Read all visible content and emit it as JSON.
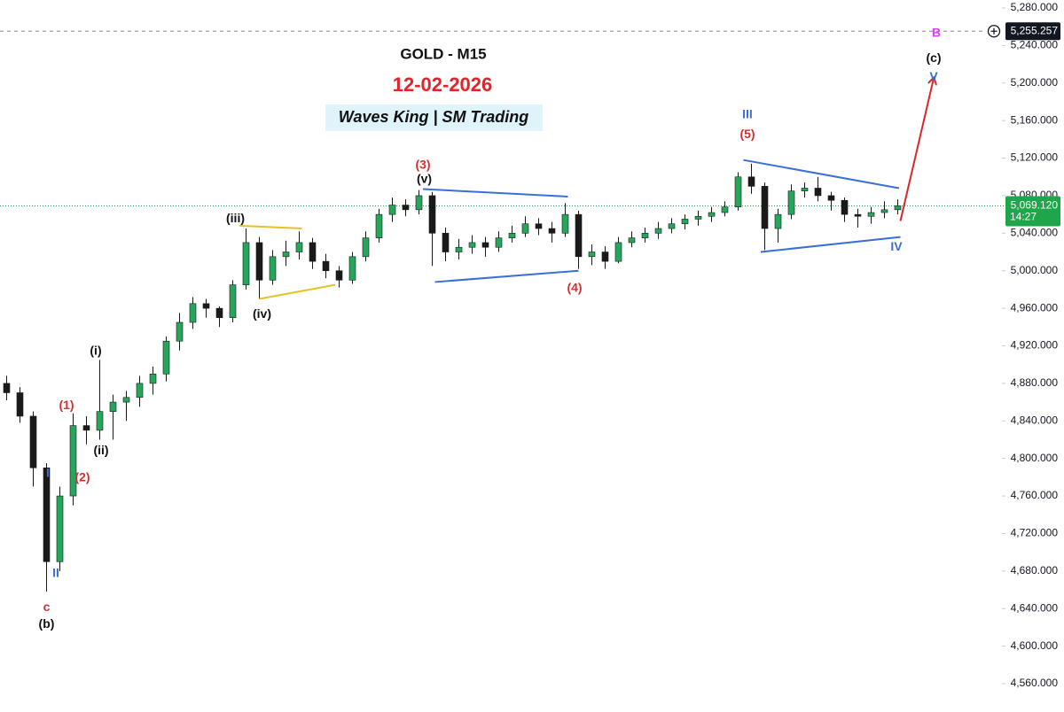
{
  "chart_data": {
    "type": "candlestick",
    "title": "GOLD - M15",
    "subtitle": "12-02-2026",
    "caption": "Waves King | SM Trading",
    "up_color": "#26a65b",
    "down_color": "#1a1a1a",
    "ylim": [
      4560,
      5280
    ],
    "xlim": [
      -0.5,
      73.5
    ],
    "yticks": [
      {
        "value": 4560,
        "label": "4,560.000"
      },
      {
        "value": 4600,
        "label": "4,600.000"
      },
      {
        "value": 4640,
        "label": "4,640.000"
      },
      {
        "value": 4680,
        "label": "4,680.000"
      },
      {
        "value": 4720,
        "label": "4,720.000"
      },
      {
        "value": 4760,
        "label": "4,760.000"
      },
      {
        "value": 4800,
        "label": "4,800.000"
      },
      {
        "value": 4840,
        "label": "4,840.000"
      },
      {
        "value": 4880,
        "label": "4,880.000"
      },
      {
        "value": 4920,
        "label": "4,920.000"
      },
      {
        "value": 4960,
        "label": "4,960.000"
      },
      {
        "value": 5000,
        "label": "5,000.000"
      },
      {
        "value": 5040,
        "label": "5,040.000"
      },
      {
        "value": 5080,
        "label": "5,080.000"
      },
      {
        "value": 5120,
        "label": "5,120.000"
      },
      {
        "value": 5160,
        "label": "5,160.000"
      },
      {
        "value": 5200,
        "label": "5,200.000"
      },
      {
        "value": 5240,
        "label": "5,240.000"
      },
      {
        "value": 5280,
        "label": "5,280.000"
      }
    ],
    "last_price": {
      "value": 5069.12,
      "label": "5,069.120",
      "countdown": "14:27",
      "color": "#1fa64b"
    },
    "marker_price": {
      "value": 5255.257,
      "label": "5,255.257"
    },
    "candles": [
      [
        4880,
        4888,
        4862,
        4870
      ],
      [
        4870,
        4876,
        4838,
        4845
      ],
      [
        4845,
        4850,
        4770,
        4790
      ],
      [
        4790,
        4795,
        4658,
        4690
      ],
      [
        4690,
        4770,
        4680,
        4760
      ],
      [
        4760,
        4848,
        4750,
        4835
      ],
      [
        4835,
        4845,
        4815,
        4830
      ],
      [
        4830,
        4905,
        4820,
        4850
      ],
      [
        4850,
        4868,
        4820,
        4860
      ],
      [
        4860,
        4872,
        4840,
        4865
      ],
      [
        4865,
        4888,
        4855,
        4880
      ],
      [
        4880,
        4898,
        4868,
        4890
      ],
      [
        4890,
        4930,
        4882,
        4925
      ],
      [
        4925,
        4955,
        4915,
        4945
      ],
      [
        4945,
        4972,
        4938,
        4965
      ],
      [
        4965,
        4970,
        4950,
        4960
      ],
      [
        4960,
        4962,
        4940,
        4950
      ],
      [
        4950,
        4990,
        4945,
        4985
      ],
      [
        4985,
        5045,
        4980,
        5030
      ],
      [
        5030,
        5036,
        4970,
        4990
      ],
      [
        4990,
        5022,
        4985,
        5015
      ],
      [
        5015,
        5032,
        5005,
        5020
      ],
      [
        5020,
        5042,
        5012,
        5030
      ],
      [
        5030,
        5035,
        5002,
        5010
      ],
      [
        5010,
        5018,
        4992,
        5000
      ],
      [
        5000,
        5005,
        4982,
        4990
      ],
      [
        4990,
        5020,
        4986,
        5015
      ],
      [
        5015,
        5042,
        5010,
        5035
      ],
      [
        5035,
        5066,
        5030,
        5060
      ],
      [
        5060,
        5078,
        5052,
        5070
      ],
      [
        5070,
        5076,
        5058,
        5065
      ],
      [
        5065,
        5086,
        5060,
        5080
      ],
      [
        5080,
        5084,
        5005,
        5040
      ],
      [
        5040,
        5046,
        5010,
        5020
      ],
      [
        5020,
        5034,
        5012,
        5025
      ],
      [
        5025,
        5038,
        5018,
        5030
      ],
      [
        5030,
        5036,
        5015,
        5025
      ],
      [
        5025,
        5042,
        5020,
        5035
      ],
      [
        5035,
        5048,
        5030,
        5040
      ],
      [
        5040,
        5058,
        5036,
        5050
      ],
      [
        5050,
        5056,
        5038,
        5045
      ],
      [
        5045,
        5052,
        5030,
        5040
      ],
      [
        5040,
        5072,
        5036,
        5060
      ],
      [
        5060,
        5064,
        5002,
        5015
      ],
      [
        5015,
        5028,
        5006,
        5020
      ],
      [
        5020,
        5026,
        5002,
        5010
      ],
      [
        5010,
        5036,
        5008,
        5030
      ],
      [
        5030,
        5042,
        5025,
        5035
      ],
      [
        5035,
        5046,
        5030,
        5040
      ],
      [
        5040,
        5052,
        5034,
        5045
      ],
      [
        5045,
        5056,
        5040,
        5050
      ],
      [
        5050,
        5060,
        5044,
        5055
      ],
      [
        5055,
        5064,
        5048,
        5058
      ],
      [
        5058,
        5068,
        5052,
        5062
      ],
      [
        5062,
        5074,
        5058,
        5068
      ],
      [
        5068,
        5105,
        5064,
        5100
      ],
      [
        5100,
        5114,
        5082,
        5090
      ],
      [
        5090,
        5094,
        5022,
        5045
      ],
      [
        5045,
        5066,
        5030,
        5060
      ],
      [
        5060,
        5092,
        5055,
        5085
      ],
      [
        5085,
        5094,
        5078,
        5088
      ],
      [
        5088,
        5100,
        5074,
        5080
      ],
      [
        5080,
        5084,
        5064,
        5075
      ],
      [
        5075,
        5078,
        5052,
        5060
      ],
      [
        5060,
        5066,
        5046,
        5058
      ],
      [
        5058,
        5068,
        5050,
        5062
      ],
      [
        5062,
        5074,
        5056,
        5065
      ],
      [
        5065,
        5076,
        5060,
        5069.12
      ]
    ],
    "lines": [
      {
        "color": "#e6c229",
        "points": [
          [
            17.5,
            5048
          ],
          [
            22.2,
            5045
          ]
        ]
      },
      {
        "color": "#e6c229",
        "points": [
          [
            19,
            4970
          ],
          [
            24.7,
            4985
          ]
        ]
      },
      {
        "color": "#3a6fd8",
        "points": [
          [
            31.3,
            5087
          ],
          [
            42.2,
            5079
          ]
        ]
      },
      {
        "color": "#3a6fd8",
        "points": [
          [
            32.2,
            4988
          ],
          [
            43,
            5000
          ]
        ]
      },
      {
        "color": "#3a6fd8",
        "points": [
          [
            55.4,
            5118
          ],
          [
            67.1,
            5088
          ]
        ]
      },
      {
        "color": "#3a6fd8",
        "points": [
          [
            56.7,
            5020
          ],
          [
            67.2,
            5036
          ]
        ]
      },
      {
        "color": "#e0242a",
        "arrow": true,
        "points": [
          [
            67.2,
            5053
          ],
          [
            69.7,
            5205
          ]
        ]
      }
    ],
    "annotations": [
      {
        "text": "c",
        "color": "#d32f2f",
        "x": 3,
        "y": 4641
      },
      {
        "text": "(b)",
        "color": "#111111",
        "x": 3,
        "y": 4623
      },
      {
        "text": "II",
        "color": "#3a6fd8",
        "x": 3.7,
        "y": 4677
      },
      {
        "text": "I",
        "color": "#3a6fd8",
        "x": 3.1,
        "y": 4784
      },
      {
        "text": "(1)",
        "color": "#d32f2f",
        "x": 4.5,
        "y": 4856
      },
      {
        "text": "(2)",
        "color": "#d32f2f",
        "x": 5.7,
        "y": 4779
      },
      {
        "text": "(i)",
        "color": "#111111",
        "x": 6.7,
        "y": 4914
      },
      {
        "text": "(ii)",
        "color": "#111111",
        "x": 7.1,
        "y": 4808
      },
      {
        "text": "(iii)",
        "color": "#111111",
        "x": 17.2,
        "y": 5055
      },
      {
        "text": "(iv)",
        "color": "#111111",
        "x": 19.2,
        "y": 4953
      },
      {
        "text": "(3)",
        "color": "#d32f2f",
        "x": 31.3,
        "y": 5112
      },
      {
        "text": "(v)",
        "color": "#111111",
        "x": 31.4,
        "y": 5097
      },
      {
        "text": "(4)",
        "color": "#d32f2f",
        "x": 42.7,
        "y": 4981
      },
      {
        "text": "III",
        "color": "#3a6fd8",
        "x": 55.7,
        "y": 5166
      },
      {
        "text": "(5)",
        "color": "#d32f2f",
        "x": 55.7,
        "y": 5145
      },
      {
        "text": "IV",
        "color": "#3a6fd8",
        "x": 66.9,
        "y": 5025
      },
      {
        "text": "(c)",
        "color": "#111111",
        "x": 69.7,
        "y": 5226
      },
      {
        "text": "V",
        "color": "#3a6fd8",
        "x": 69.7,
        "y": 5206
      },
      {
        "text": "B",
        "color": "#e040fb",
        "x": 69.9,
        "y": 5253
      }
    ]
  }
}
